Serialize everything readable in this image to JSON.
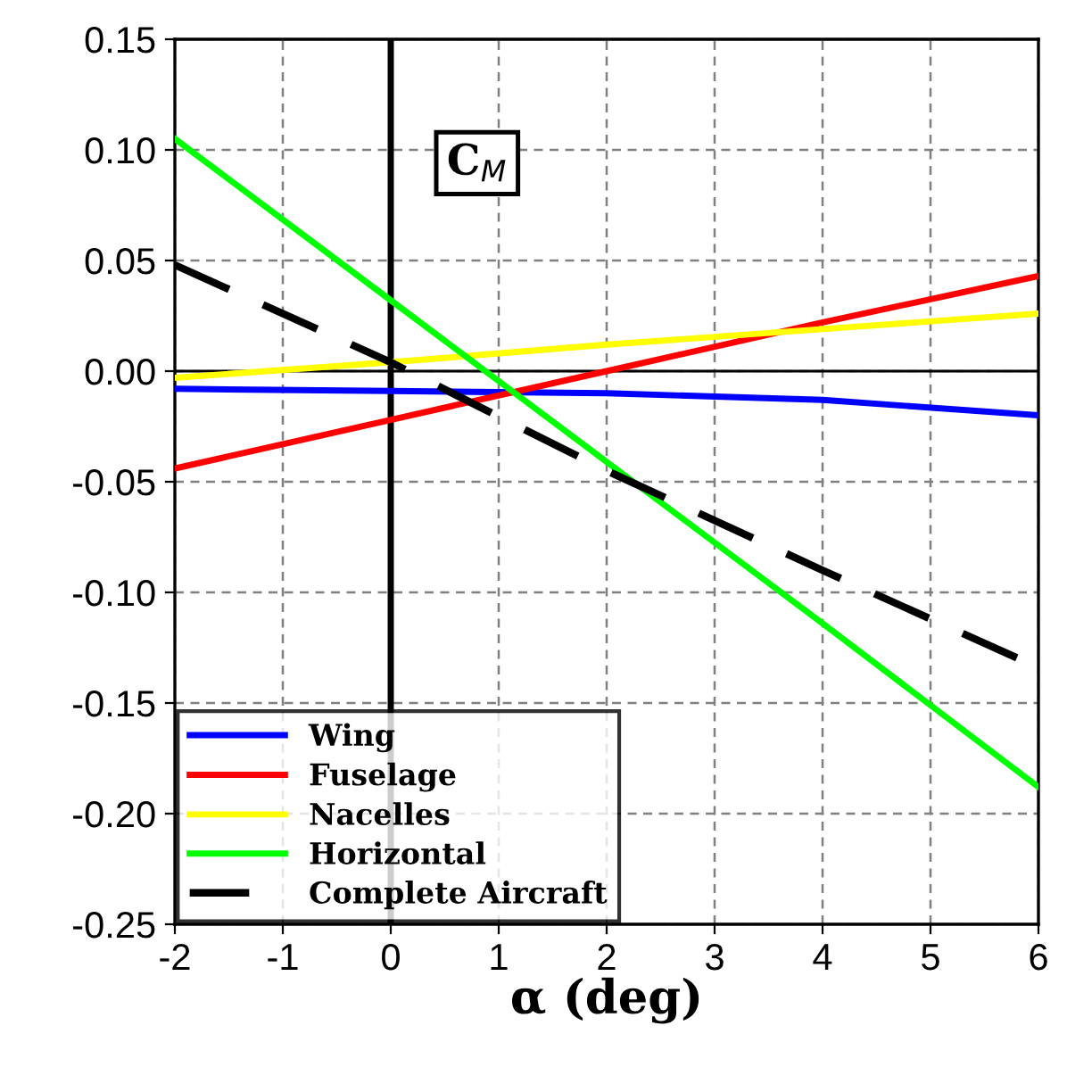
{
  "chart_data": {
    "type": "line",
    "xlabel": "α (deg)",
    "x": [
      -2,
      0,
      2,
      4,
      6
    ],
    "series": [
      {
        "name": "Wing",
        "color": "#0000ff",
        "values": [
          -0.008,
          -0.009,
          -0.01,
          -0.013,
          -0.02
        ]
      },
      {
        "name": "Fuselage",
        "color": "#ff0000",
        "values": [
          -0.044,
          -0.022,
          0.0,
          0.022,
          0.043
        ]
      },
      {
        "name": "Nacelles",
        "color": "#ffff00",
        "values": [
          -0.003,
          0.004,
          0.012,
          0.019,
          0.026
        ]
      },
      {
        "name": "Horizontal",
        "color": "#00ff00",
        "values": [
          0.105,
          0.032,
          -0.041,
          -0.114,
          -0.188
        ]
      },
      {
        "name": "Complete Aircraft",
        "color": "#000000",
        "line_style": "dashed",
        "values": [
          0.048,
          0.004,
          -0.045,
          -0.09,
          -0.134
        ]
      }
    ],
    "xlim": [
      -2,
      6
    ],
    "xticks": [
      -2,
      -1,
      0,
      1,
      2,
      3,
      4,
      5,
      6
    ],
    "ylim": [
      -0.25,
      0.15
    ],
    "yticks": [
      {
        "value": -0.25,
        "label": "-0.25"
      },
      {
        "value": -0.2,
        "label": "-0.20"
      },
      {
        "value": -0.15,
        "label": "-0.15"
      },
      {
        "value": -0.1,
        "label": "-0.10"
      },
      {
        "value": -0.05,
        "label": "-0.05"
      },
      {
        "value": 0,
        "label": "0.00"
      },
      {
        "value": 0.05,
        "label": "0.05"
      },
      {
        "value": 0.1,
        "label": "0.10"
      },
      {
        "value": 0.15,
        "label": "0.15"
      }
    ],
    "ref_lines": [
      {
        "axis": "x",
        "value": 0,
        "color": "#000000"
      },
      {
        "axis": "y",
        "value": 0,
        "color": "#000000"
      }
    ],
    "annotations": [
      "C$_{M}$"
    ],
    "grid": true,
    "legend": "bottom left",
    "marker": "none",
    "line_style": "solid"
  }
}
